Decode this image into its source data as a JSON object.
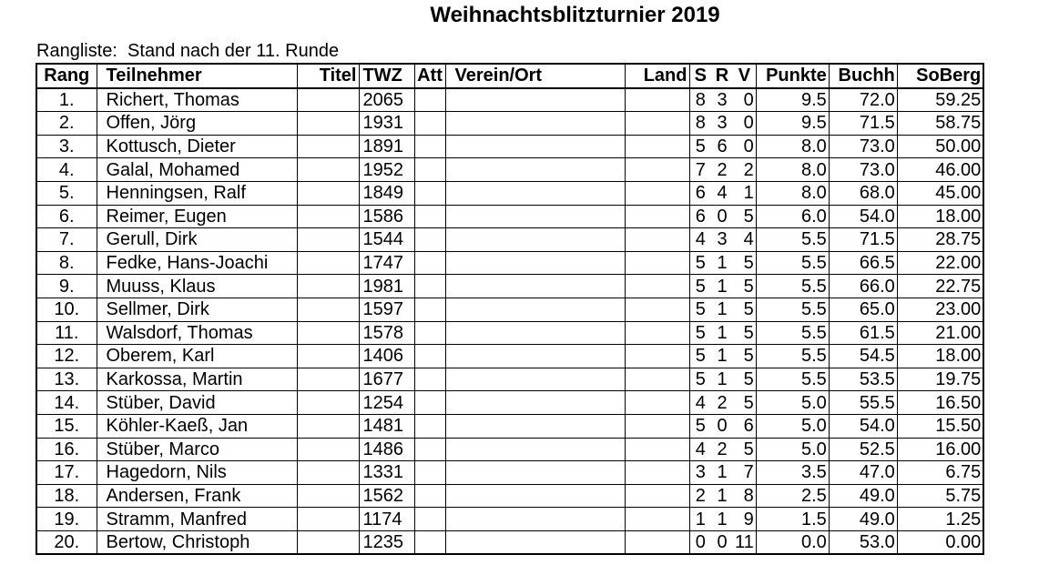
{
  "document": {
    "title": "Weihnachtsblitzturnier 2019",
    "subtitle": "Rangliste:  Stand nach der 11. Runde"
  },
  "table": {
    "headers": {
      "rang": "Rang",
      "teilnehmer": "Teilnehmer",
      "titel": "Titel",
      "twz": "TWZ",
      "att": "Att",
      "verein": "Verein/Ort",
      "land": "Land",
      "s": "S",
      "r": "R",
      "v": "V",
      "punkte": "Punkte",
      "buchh": "Buchh",
      "soberg": "SoBerg"
    },
    "rows": [
      {
        "rang": "1.",
        "name": "Richert, Thomas",
        "titel": "",
        "twz": "2065",
        "att": "",
        "verein": "",
        "land": "",
        "s": "8",
        "r": "3",
        "v": "0",
        "punkte": "9.5",
        "buchh": "72.0",
        "soberg": "59.25"
      },
      {
        "rang": "2.",
        "name": "Offen, Jörg",
        "titel": "",
        "twz": "1931",
        "att": "",
        "verein": "",
        "land": "",
        "s": "8",
        "r": "3",
        "v": "0",
        "punkte": "9.5",
        "buchh": "71.5",
        "soberg": "58.75"
      },
      {
        "rang": "3.",
        "name": "Kottusch, Dieter",
        "titel": "",
        "twz": "1891",
        "att": "",
        "verein": "",
        "land": "",
        "s": "5",
        "r": "6",
        "v": "0",
        "punkte": "8.0",
        "buchh": "73.0",
        "soberg": "50.00"
      },
      {
        "rang": "4.",
        "name": "Galal, Mohamed",
        "titel": "",
        "twz": "1952",
        "att": "",
        "verein": "",
        "land": "",
        "s": "7",
        "r": "2",
        "v": "2",
        "punkte": "8.0",
        "buchh": "73.0",
        "soberg": "46.00"
      },
      {
        "rang": "5.",
        "name": "Henningsen, Ralf",
        "titel": "",
        "twz": "1849",
        "att": "",
        "verein": "",
        "land": "",
        "s": "6",
        "r": "4",
        "v": "1",
        "punkte": "8.0",
        "buchh": "68.0",
        "soberg": "45.00"
      },
      {
        "rang": "6.",
        "name": "Reimer, Eugen",
        "titel": "",
        "twz": "1586",
        "att": "",
        "verein": "",
        "land": "",
        "s": "6",
        "r": "0",
        "v": "5",
        "punkte": "6.0",
        "buchh": "54.0",
        "soberg": "18.00"
      },
      {
        "rang": "7.",
        "name": "Gerull, Dirk",
        "titel": "",
        "twz": "1544",
        "att": "",
        "verein": "",
        "land": "",
        "s": "4",
        "r": "3",
        "v": "4",
        "punkte": "5.5",
        "buchh": "71.5",
        "soberg": "28.75"
      },
      {
        "rang": "8.",
        "name": "Fedke, Hans-Joachi",
        "titel": "",
        "twz": "1747",
        "att": "",
        "verein": "",
        "land": "",
        "s": "5",
        "r": "1",
        "v": "5",
        "punkte": "5.5",
        "buchh": "66.5",
        "soberg": "22.00"
      },
      {
        "rang": "9.",
        "name": "Muuss, Klaus",
        "titel": "",
        "twz": "1981",
        "att": "",
        "verein": "",
        "land": "",
        "s": "5",
        "r": "1",
        "v": "5",
        "punkte": "5.5",
        "buchh": "66.0",
        "soberg": "22.75"
      },
      {
        "rang": "10.",
        "name": "Sellmer, Dirk",
        "titel": "",
        "twz": "1597",
        "att": "",
        "verein": "",
        "land": "",
        "s": "5",
        "r": "1",
        "v": "5",
        "punkte": "5.5",
        "buchh": "65.0",
        "soberg": "23.00"
      },
      {
        "rang": "11.",
        "name": "Walsdorf, Thomas",
        "titel": "",
        "twz": "1578",
        "att": "",
        "verein": "",
        "land": "",
        "s": "5",
        "r": "1",
        "v": "5",
        "punkte": "5.5",
        "buchh": "61.5",
        "soberg": "21.00"
      },
      {
        "rang": "12.",
        "name": "Oberem, Karl",
        "titel": "",
        "twz": "1406",
        "att": "",
        "verein": "",
        "land": "",
        "s": "5",
        "r": "1",
        "v": "5",
        "punkte": "5.5",
        "buchh": "54.5",
        "soberg": "18.00"
      },
      {
        "rang": "13.",
        "name": "Karkossa, Martin",
        "titel": "",
        "twz": "1677",
        "att": "",
        "verein": "",
        "land": "",
        "s": "5",
        "r": "1",
        "v": "5",
        "punkte": "5.5",
        "buchh": "53.5",
        "soberg": "19.75"
      },
      {
        "rang": "14.",
        "name": "Stüber, David",
        "titel": "",
        "twz": "1254",
        "att": "",
        "verein": "",
        "land": "",
        "s": "4",
        "r": "2",
        "v": "5",
        "punkte": "5.0",
        "buchh": "55.5",
        "soberg": "16.50"
      },
      {
        "rang": "15.",
        "name": "Köhler-Kaeß, Jan",
        "titel": "",
        "twz": "1481",
        "att": "",
        "verein": "",
        "land": "",
        "s": "5",
        "r": "0",
        "v": "6",
        "punkte": "5.0",
        "buchh": "54.0",
        "soberg": "15.50"
      },
      {
        "rang": "16.",
        "name": "Stüber, Marco",
        "titel": "",
        "twz": "1486",
        "att": "",
        "verein": "",
        "land": "",
        "s": "4",
        "r": "2",
        "v": "5",
        "punkte": "5.0",
        "buchh": "52.5",
        "soberg": "16.00"
      },
      {
        "rang": "17.",
        "name": "Hagedorn, Nils",
        "titel": "",
        "twz": "1331",
        "att": "",
        "verein": "",
        "land": "",
        "s": "3",
        "r": "1",
        "v": "7",
        "punkte": "3.5",
        "buchh": "47.0",
        "soberg": "6.75"
      },
      {
        "rang": "18.",
        "name": "Andersen, Frank",
        "titel": "",
        "twz": "1562",
        "att": "",
        "verein": "",
        "land": "",
        "s": "2",
        "r": "1",
        "v": "8",
        "punkte": "2.5",
        "buchh": "49.0",
        "soberg": "5.75"
      },
      {
        "rang": "19.",
        "name": "Stramm, Manfred",
        "titel": "",
        "twz": "1174",
        "att": "",
        "verein": "",
        "land": "",
        "s": "1",
        "r": "1",
        "v": "9",
        "punkte": "1.5",
        "buchh": "49.0",
        "soberg": "1.25"
      },
      {
        "rang": "20.",
        "name": "Bertow, Christoph",
        "titel": "",
        "twz": "1235",
        "att": "",
        "verein": "",
        "land": "",
        "s": "0",
        "r": "0",
        "v": "11",
        "punkte": "0.0",
        "buchh": "53.0",
        "soberg": "0.00"
      }
    ]
  }
}
